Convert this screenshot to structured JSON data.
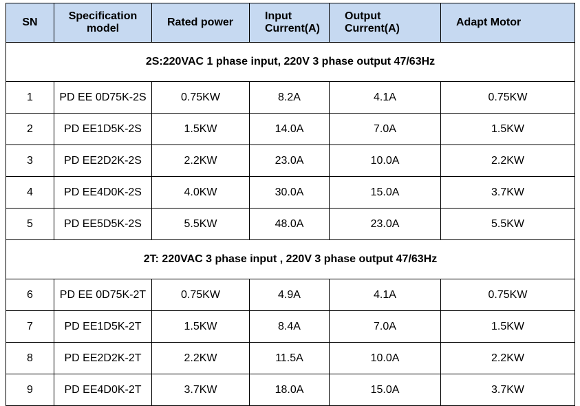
{
  "table": {
    "header": [
      "SN",
      "Specification model",
      "Rated power",
      "Input Current(A)",
      "Output Current(A)",
      "Adapt Motor"
    ],
    "sections": [
      {
        "title": "2S:220VAC 1 phase input, 220V 3 phase output  47/63Hz",
        "rows": [
          [
            "1",
            "PD EE 0D75K-2S",
            "0.75KW",
            "8.2A",
            "4.1A",
            "0.75KW"
          ],
          [
            "2",
            "PD EE1D5K-2S",
            "1.5KW",
            "14.0A",
            "7.0A",
            "1.5KW"
          ],
          [
            "3",
            "PD EE2D2K-2S",
            "2.2KW",
            "23.0A",
            "10.0A",
            "2.2KW"
          ],
          [
            "4",
            "PD EE4D0K-2S",
            "4.0KW",
            "30.0A",
            "15.0A",
            "3.7KW"
          ],
          [
            "5",
            "PD EE5D5K-2S",
            "5.5KW",
            "48.0A",
            "23.0A",
            "5.5KW"
          ]
        ]
      },
      {
        "title": "2T: 220VAC  3 phase input ,  220V 3 phase output  47/63Hz",
        "rows": [
          [
            "6",
            "PD EE 0D75K-2T",
            "0.75KW",
            "4.9A",
            "4.1A",
            "0.75KW"
          ],
          [
            "7",
            "PD EE1D5K-2T",
            "1.5KW",
            "8.4A",
            "7.0A",
            "1.5KW"
          ],
          [
            "8",
            "PD EE2D2K-2T",
            "2.2KW",
            "11.5A",
            "10.0A",
            "2.2KW"
          ],
          [
            "9",
            "PD EE4D0K-2T",
            "3.7KW",
            "18.0A",
            "15.0A",
            "3.7KW"
          ]
        ]
      }
    ]
  }
}
